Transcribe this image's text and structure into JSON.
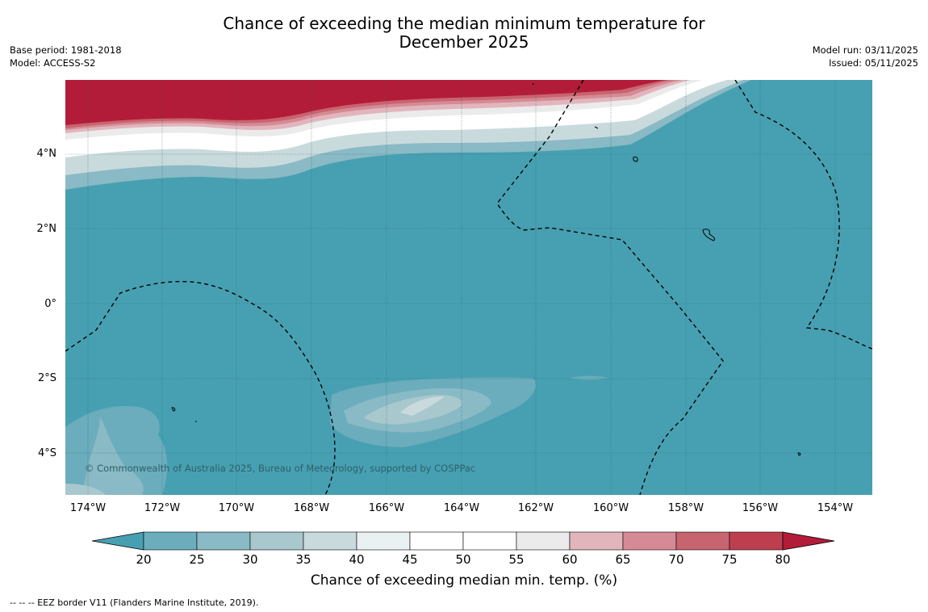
{
  "title_line1": "Chance of exceeding the median minimum temperature for",
  "title_line2": "December 2025",
  "meta_left": {
    "base_period": "Base period: 1981-2018",
    "model": "Model: ACCESS-S2"
  },
  "meta_right": {
    "model_run": "Model run: 03/11/2025",
    "issued": "Issued: 05/11/2025"
  },
  "map": {
    "copyright": "© Commonwealth of Australia 2025, Bureau of Meteorology, supported by COSPPac",
    "lat_labels": [
      "4°N",
      "2°N",
      "0°",
      "2°S",
      "4°S"
    ],
    "lon_labels": [
      "174°W",
      "172°W",
      "170°W",
      "168°W",
      "166°W",
      "164°W",
      "162°W",
      "160°W",
      "158°W",
      "156°W",
      "154°W"
    ],
    "background_color": "#47a0b1"
  },
  "colorbar": {
    "title": "Chance of exceeding median min. temp. (%)",
    "ticks": [
      "20",
      "25",
      "30",
      "35",
      "40",
      "45",
      "50",
      "55",
      "60",
      "65",
      "70",
      "75",
      "80"
    ],
    "colors": [
      "#47a0b1",
      "#6badbc",
      "#89bac5",
      "#a9c8ce",
      "#c9dadd",
      "#eaf1f3",
      "#ffffff",
      "#ffffff",
      "#ebebeb",
      "#e2b5bc",
      "#d58a95",
      "#c8646f",
      "#bd3f4f",
      "#b31c38"
    ]
  },
  "footnote": "--  --  -- EEZ border V11 (Flanders Marine Institute, 2019)."
}
